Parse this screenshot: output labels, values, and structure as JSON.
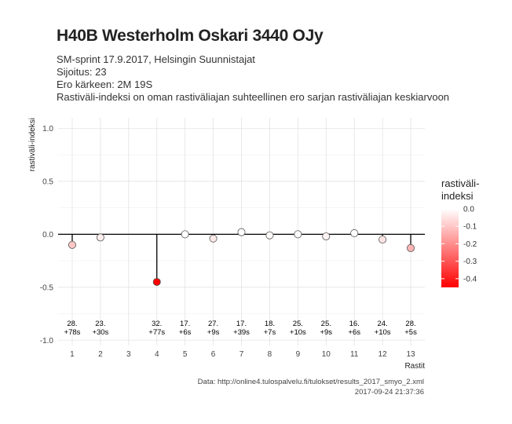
{
  "header": {
    "title": "H40B Westerholm Oskari 3440 OJy",
    "line1": "SM-sprint 17.9.2017, Helsingin Suunnistajat",
    "line2": "Sijoitus: 23",
    "line3": "Ero kärkeen: 2M 19S",
    "line4": "Rastiväli-indeksi on oman rastiväliajan suhteellinen ero sarjan rastiväliajan keskiarvoon"
  },
  "footer": {
    "source": "Data: http://online4.tulospalvelu.fi/tulokset/results_2017_smyo_2.xml",
    "timestamp": "2017-09-24 21:37:36"
  },
  "chart_data": {
    "type": "scatter",
    "xlabel": "Rastit",
    "ylabel": "rastiväli-indeksi",
    "xlim": [
      0.5,
      13.5
    ],
    "ylim": [
      -1.05,
      1.1
    ],
    "x_ticks": [
      1,
      2,
      3,
      4,
      5,
      6,
      7,
      8,
      9,
      10,
      11,
      12,
      13
    ],
    "y_ticks": [
      -1.0,
      -0.5,
      0.0,
      0.5,
      1.0
    ],
    "y_tick_labels": [
      "-1.0",
      "-0.5",
      "0.0",
      "0.5",
      "1.0"
    ],
    "grid": true,
    "points": [
      {
        "x": 1,
        "y": -0.1,
        "rank": "28.",
        "diff": "+78s"
      },
      {
        "x": 2,
        "y": -0.03,
        "rank": "23.",
        "diff": "+30s"
      },
      {
        "x": 4,
        "y": -0.45,
        "rank": "32.",
        "diff": "+77s"
      },
      {
        "x": 5,
        "y": 0.0,
        "rank": "17.",
        "diff": "+6s"
      },
      {
        "x": 6,
        "y": -0.04,
        "rank": "27.",
        "diff": "+9s"
      },
      {
        "x": 7,
        "y": 0.02,
        "rank": "17.",
        "diff": "+39s"
      },
      {
        "x": 8,
        "y": -0.01,
        "rank": "18.",
        "diff": "+7s"
      },
      {
        "x": 9,
        "y": 0.0,
        "rank": "25.",
        "diff": "+10s"
      },
      {
        "x": 10,
        "y": -0.02,
        "rank": "25.",
        "diff": "+9s"
      },
      {
        "x": 11,
        "y": 0.01,
        "rank": "16.",
        "diff": "+6s"
      },
      {
        "x": 12,
        "y": -0.05,
        "rank": "24.",
        "diff": "+10s"
      },
      {
        "x": 13,
        "y": -0.13,
        "rank": "28.",
        "diff": "+5s"
      }
    ],
    "legend": {
      "title_line1": "rastiväli-",
      "title_line2": "indeksi",
      "placement": "right",
      "ticks": [
        0.0,
        -0.1,
        -0.2,
        -0.3,
        -0.4
      ],
      "tick_labels": [
        "0.0",
        "-0.1",
        "-0.2",
        "-0.3",
        "-0.4"
      ],
      "range": [
        -0.45,
        0.0
      ],
      "color_low": "#ff0000",
      "color_high": "#ffffff"
    }
  }
}
